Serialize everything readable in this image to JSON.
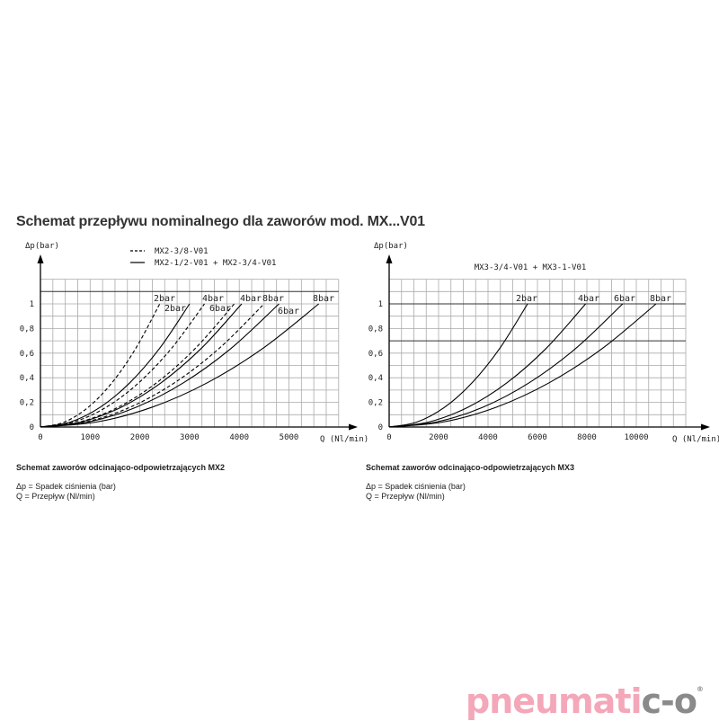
{
  "title": "Schemat przepływu nominalnego dla zaworów mod. MX...V01",
  "captions": [
    {
      "heading": "Schemat zaworów odcinająco-odpowietrzających  MX2",
      "line1": "Δp = Spadek ciśnienia (bar)",
      "line2": "Q = Przepływ (Nl/min)"
    },
    {
      "heading": "Schemat zaworów odcinająco-odpowietrzających  MX3",
      "line1": "Δp = Spadek ciśnienia (bar)",
      "line2": "Q = Przepływ (Nl/min)"
    }
  ],
  "logo": {
    "text_pink": "pneumati",
    "text_gray": "c-o",
    "registered": "®",
    "colors": {
      "pink": "#f4a7b9",
      "gray": "#8a8a8a"
    }
  },
  "chart_data": [
    {
      "type": "line",
      "xlabel": "Q (Nl/min)",
      "ylabel": "Δp(bar)",
      "xlim": [
        0,
        6000
      ],
      "ylim": [
        0,
        1.2
      ],
      "grid": true,
      "x_ticks": [
        "0",
        "1000",
        "2000",
        "3000",
        "4000",
        "5000"
      ],
      "x_tick_values": [
        0,
        1000,
        2000,
        3000,
        4000,
        5000
      ],
      "y_ticks": [
        "0",
        "0,2",
        "0,4",
        "0,6",
        "0,8",
        "1"
      ],
      "y_tick_values": [
        0,
        0.2,
        0.4,
        0.6,
        0.8,
        1
      ],
      "legend": {
        "placement": "top",
        "entries": [
          {
            "style": "dashed",
            "label": "MX2-3/8-V01"
          },
          {
            "style": "solid",
            "label": "MX2-1/2-V01 + MX2-3/4-V01"
          }
        ]
      },
      "series": [
        {
          "name": "2bar",
          "style": "dashed",
          "points": [
            [
              0,
              0
            ],
            [
              480,
              0.04
            ],
            [
              960,
              0.16
            ],
            [
              1440,
              0.36
            ],
            [
              1920,
              0.64
            ],
            [
              2400,
              1
            ]
          ]
        },
        {
          "name": "2bar",
          "style": "solid",
          "points": [
            [
              0,
              0
            ],
            [
              600,
              0.04
            ],
            [
              1200,
              0.16
            ],
            [
              1800,
              0.36
            ],
            [
              2400,
              0.64
            ],
            [
              3000,
              1
            ]
          ]
        },
        {
          "name": "4bar",
          "style": "dashed",
          "points": [
            [
              0,
              0
            ],
            [
              660,
              0.04
            ],
            [
              1320,
              0.16
            ],
            [
              1980,
              0.36
            ],
            [
              2640,
              0.64
            ],
            [
              3300,
              1
            ]
          ]
        },
        {
          "name": "6bar",
          "style": "dashed",
          "points": [
            [
              0,
              0
            ],
            [
              780,
              0.04
            ],
            [
              1560,
              0.16
            ],
            [
              2340,
              0.36
            ],
            [
              3120,
              0.64
            ],
            [
              3900,
              1
            ]
          ]
        },
        {
          "name": "4bar",
          "style": "solid",
          "points": [
            [
              0,
              0
            ],
            [
              810,
              0.04
            ],
            [
              1620,
              0.16
            ],
            [
              2430,
              0.36
            ],
            [
              3240,
              0.64
            ],
            [
              4050,
              1
            ]
          ]
        },
        {
          "name": "8bar",
          "style": "dashed",
          "points": [
            [
              0,
              0
            ],
            [
              900,
              0.04
            ],
            [
              1800,
              0.16
            ],
            [
              2700,
              0.36
            ],
            [
              3600,
              0.64
            ],
            [
              4500,
              1
            ]
          ]
        },
        {
          "name": "6bar",
          "style": "solid",
          "points": [
            [
              0,
              0
            ],
            [
              960,
              0.04
            ],
            [
              1920,
              0.16
            ],
            [
              2880,
              0.36
            ],
            [
              3840,
              0.64
            ],
            [
              4800,
              1
            ]
          ]
        },
        {
          "name": "8bar",
          "style": "solid",
          "points": [
            [
              0,
              0
            ],
            [
              1120,
              0.04
            ],
            [
              2240,
              0.16
            ],
            [
              3360,
              0.36
            ],
            [
              4480,
              0.64
            ],
            [
              5600,
              1
            ]
          ]
        }
      ]
    },
    {
      "type": "line",
      "title": "MX3-3/4-V01 + MX3-1-V01",
      "xlabel": "Q (Nl/min)",
      "ylabel": "Δp(bar)",
      "xlim": [
        0,
        12000
      ],
      "ylim": [
        0,
        1.2
      ],
      "grid": true,
      "x_ticks": [
        "0",
        "2000",
        "4000",
        "6000",
        "8000",
        "10000"
      ],
      "x_tick_values": [
        0,
        2000,
        4000,
        6000,
        8000,
        10000
      ],
      "y_ticks": [
        "0",
        "0,2",
        "0,4",
        "0,6",
        "0,8",
        "1"
      ],
      "y_tick_values": [
        0,
        0.2,
        0.4,
        0.6,
        0.8,
        1
      ],
      "series": [
        {
          "name": "2bar",
          "style": "solid",
          "points": [
            [
              0,
              0
            ],
            [
              1120,
              0.04
            ],
            [
              2240,
              0.16
            ],
            [
              3360,
              0.36
            ],
            [
              4480,
              0.64
            ],
            [
              5600,
              1
            ]
          ]
        },
        {
          "name": "4bar",
          "style": "solid",
          "points": [
            [
              0,
              0
            ],
            [
              1590,
              0.04
            ],
            [
              3180,
              0.16
            ],
            [
              4770,
              0.36
            ],
            [
              6360,
              0.64
            ],
            [
              7950,
              1
            ]
          ]
        },
        {
          "name": "6bar",
          "style": "solid",
          "points": [
            [
              0,
              0
            ],
            [
              1890,
              0.04
            ],
            [
              3780,
              0.16
            ],
            [
              5670,
              0.36
            ],
            [
              7560,
              0.64
            ],
            [
              9450,
              1
            ]
          ]
        },
        {
          "name": "8bar",
          "style": "solid",
          "points": [
            [
              0,
              0
            ],
            [
              2160,
              0.04
            ],
            [
              4320,
              0.16
            ],
            [
              6480,
              0.36
            ],
            [
              8640,
              0.64
            ],
            [
              10800,
              1
            ]
          ]
        }
      ]
    }
  ]
}
